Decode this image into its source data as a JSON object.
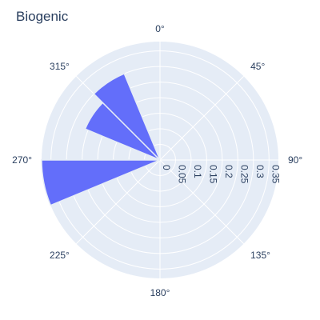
{
  "chart_data": {
    "type": "barpolar",
    "title": "Biogenic",
    "angular_axis": {
      "rotation": 90,
      "direction": "clockwise",
      "tick_labels": [
        "0°",
        "45°",
        "90°",
        "135°",
        "180°",
        "225°",
        "270°",
        "315°"
      ],
      "tick_values": [
        0,
        45,
        90,
        135,
        180,
        225,
        270,
        315
      ]
    },
    "radial_axis": {
      "range": [
        0,
        0.38
      ],
      "tick_values": [
        0,
        0.05,
        0.1,
        0.15,
        0.2,
        0.25,
        0.3,
        0.35
      ],
      "tick_labels": [
        "0",
        "0.05",
        "0.1",
        "0.15",
        "0.2",
        "0.25",
        "0.3",
        "0.35"
      ],
      "angle": 90
    },
    "series": [
      {
        "color": "#636efa",
        "bars": [
          {
            "theta_start": 247.5,
            "theta_end": 270,
            "r": 0.38
          },
          {
            "theta_start": 292.5,
            "theta_end": 315,
            "r": 0.26
          },
          {
            "theta_start": 315,
            "theta_end": 337.5,
            "r": 0.3
          }
        ]
      }
    ],
    "grid": true,
    "background": "#e5ecf6",
    "gridline_color": "#ffffff"
  }
}
